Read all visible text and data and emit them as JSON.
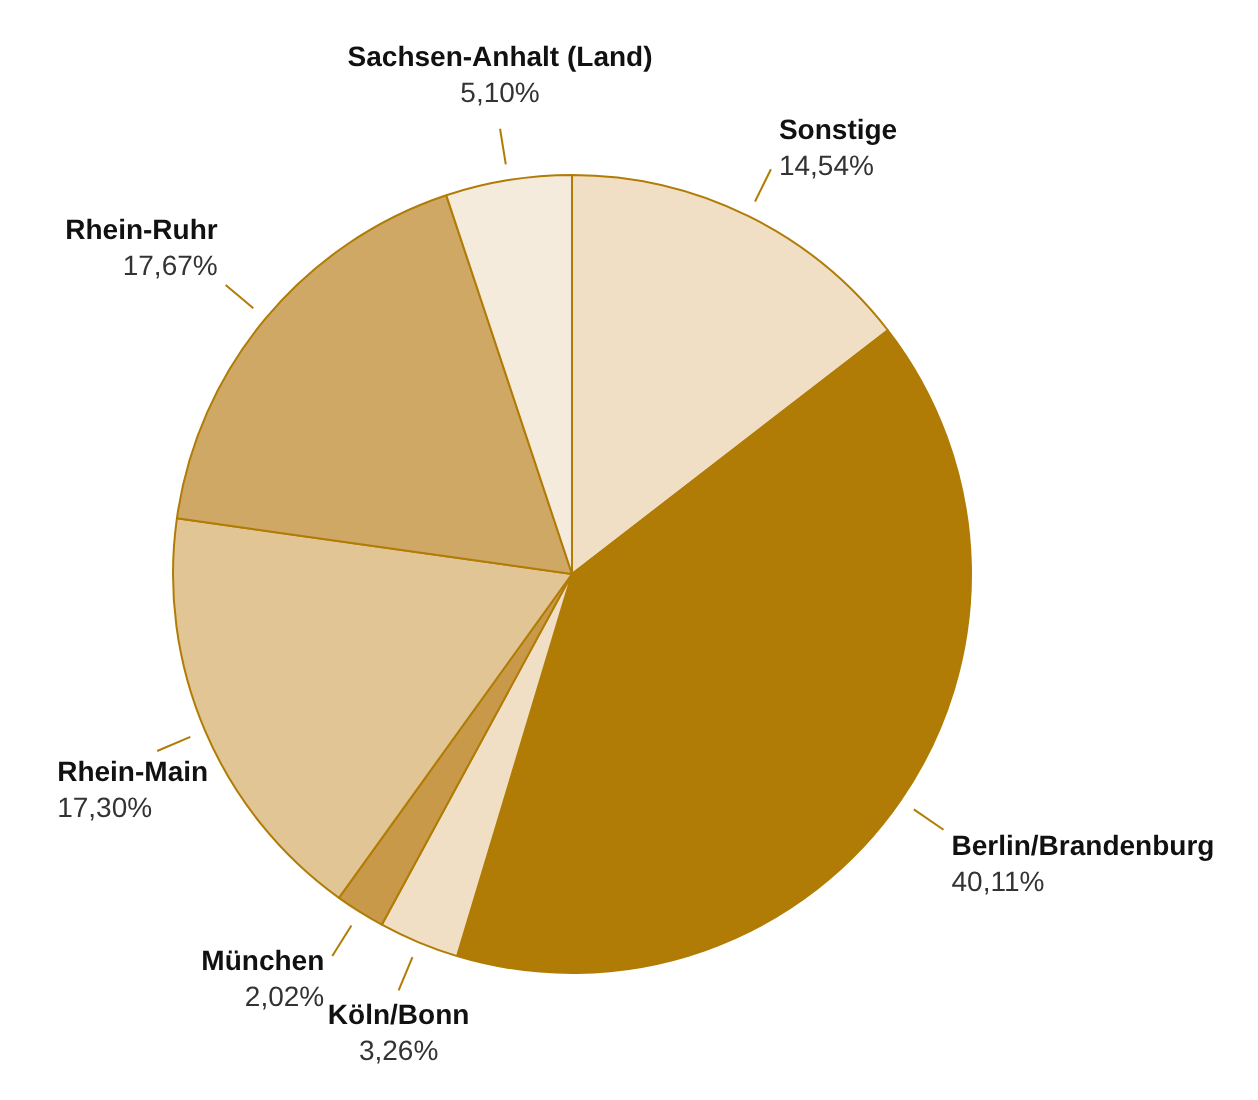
{
  "chart_data": {
    "type": "pie",
    "categories": [
      "Sonstige",
      "Berlin/Brandenburg",
      "Köln/Bonn",
      "München",
      "Rhein-Main",
      "Rhein-Ruhr",
      "Sachsen-Anhalt (Land)"
    ],
    "values": [
      14.54,
      40.11,
      3.26,
      2.02,
      17.3,
      17.67,
      5.1
    ],
    "value_labels": [
      "14,54%",
      "40,11%",
      "3,26%",
      "2,02%",
      "17,30%",
      "17,67%",
      "5,10%"
    ],
    "colors": [
      "#f0dfc4",
      "#b07c05",
      "#f0dfc4",
      "#c9994a",
      "#e2c594",
      "#d0a866",
      "#f5ebdc"
    ],
    "legend": false
  }
}
